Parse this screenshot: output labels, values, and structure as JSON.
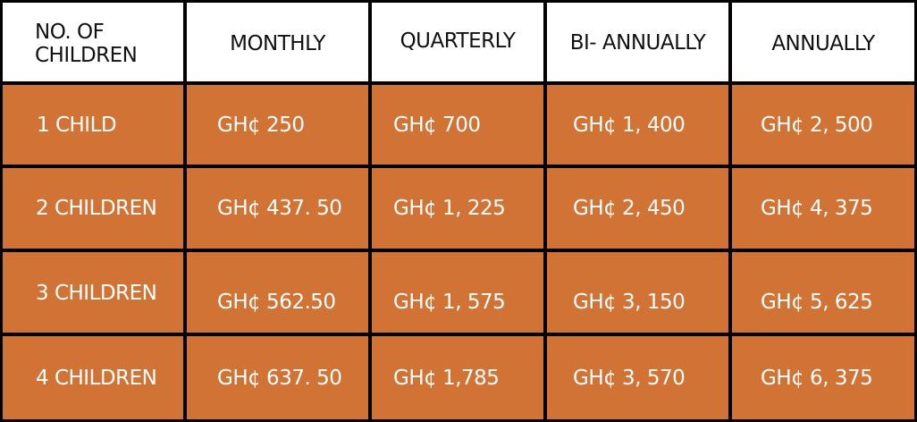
{
  "header": {
    "children": "NO. OF\nCHILDREN",
    "monthly": "MONTHLY",
    "quarterly": "QUARTERLY",
    "biannually": "BI- ANNUALLY",
    "annually": "ANNUALLY"
  },
  "rows": [
    {
      "children": "1 CHILD",
      "monthly": "GH¢ 250",
      "quarterly": "GH¢ 700",
      "biannually": "GH¢ 1, 400",
      "annually": "GH¢ 2, 500"
    },
    {
      "children": "2 CHILDREN",
      "monthly": "GH¢ 437. 50",
      "quarterly": "GH¢ 1, 225",
      "biannually": "GH¢ 2, 450",
      "annually": "GH¢ 4, 375"
    },
    {
      "children": "3 CHILDREN",
      "monthly": "GH¢ 562.50",
      "quarterly": "GH¢ 1, 575",
      "biannually": "GH¢ 3, 150",
      "annually": "GH¢ 5, 625"
    },
    {
      "children": "4 CHILDREN",
      "monthly": "GH¢ 637. 50",
      "quarterly": "GH¢ 1,785",
      "biannually": "GH¢ 3, 570",
      "annually": "GH¢ 6, 375"
    }
  ],
  "colors": {
    "header_bg": "#ffffff",
    "body_bg": "#d27336",
    "border": "#000000",
    "body_text": "#ffffff"
  }
}
